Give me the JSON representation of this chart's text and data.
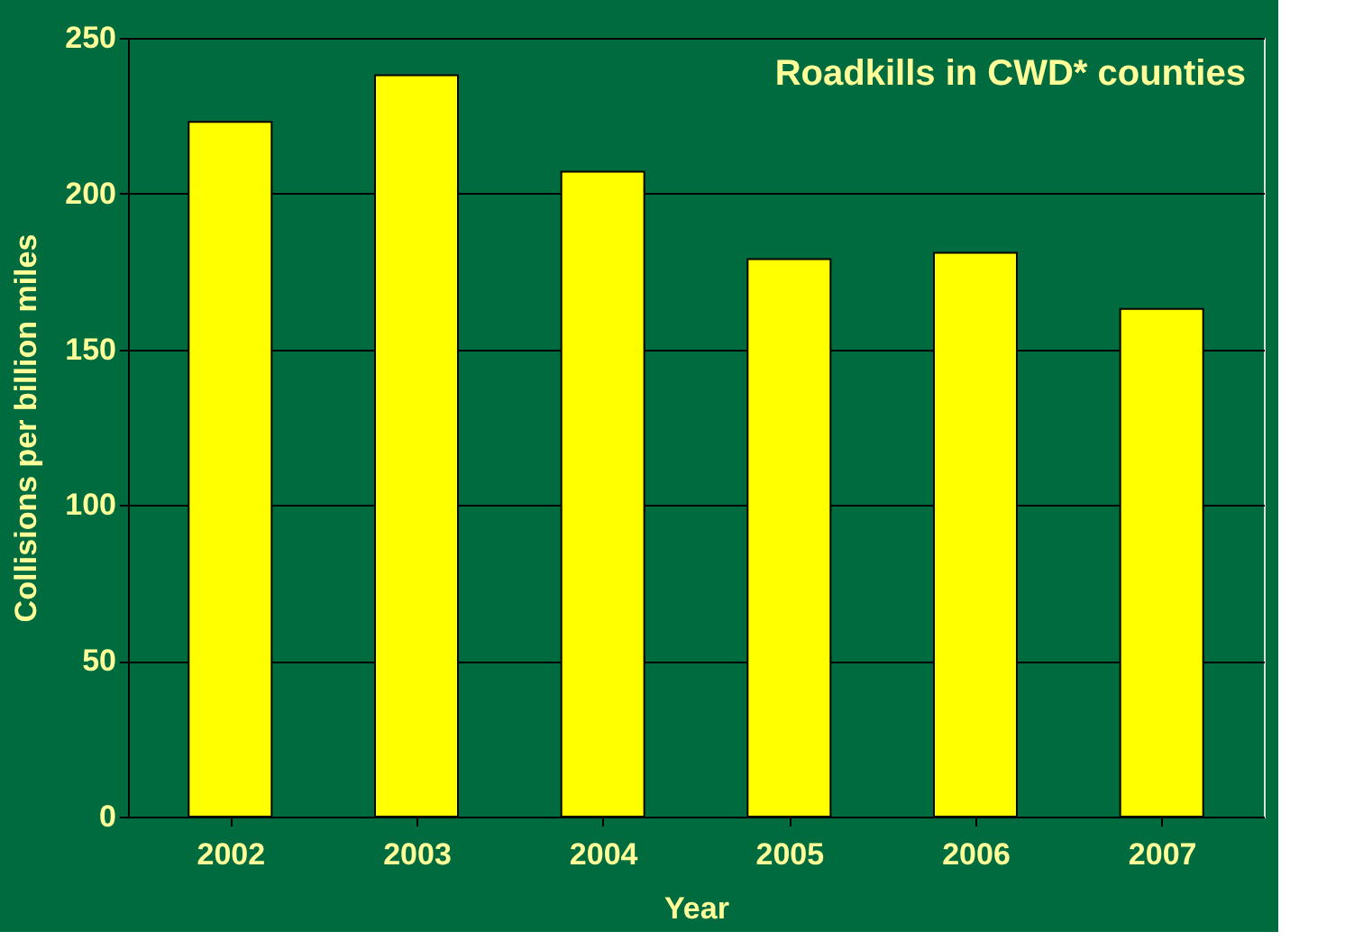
{
  "chart_data": {
    "type": "bar",
    "title": "Roadkills in CWD* counties",
    "xlabel": "Year",
    "ylabel": "Collisions per billion miles",
    "categories": [
      "2002",
      "2003",
      "2004",
      "2005",
      "2006",
      "2007"
    ],
    "values": [
      223,
      238,
      207,
      179,
      181,
      163
    ],
    "color": "#ffff00",
    "ylim": [
      0,
      250
    ],
    "yticks": [
      0,
      50,
      100,
      150,
      200,
      250
    ],
    "grid": "y"
  }
}
